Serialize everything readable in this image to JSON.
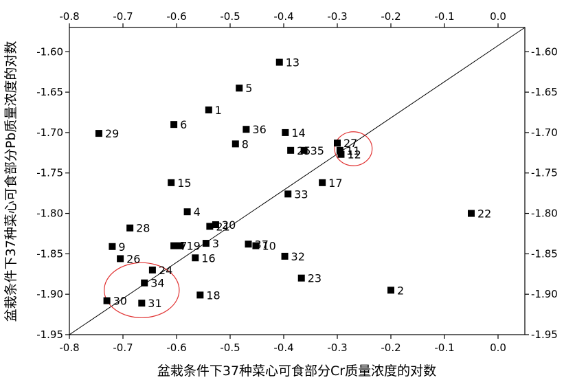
{
  "chart_data": {
    "type": "scatter",
    "xlabel": "盆栽条件下37种菜心可食部分Cr质量浓度的对数",
    "ylabel": "盆栽条件下37种菜心可食部分Pb质量浓度的对数",
    "xlim": [
      -0.8,
      0.05
    ],
    "ylim": [
      -1.95,
      -1.57
    ],
    "x_ticks": [
      -0.8,
      -0.7,
      -0.6,
      -0.5,
      -0.4,
      -0.3,
      -0.2,
      -0.1,
      0.0
    ],
    "x_tick_labels": [
      "-0.8",
      "-0.7",
      "-0.6",
      "-0.5",
      "-0.4",
      "-0.3",
      "-0.2",
      "-0.1",
      "0.0"
    ],
    "y_ticks": [
      -1.95,
      -1.9,
      -1.85,
      -1.8,
      -1.75,
      -1.7,
      -1.65,
      -1.6
    ],
    "y_tick_labels": [
      "-1.95",
      "-1.90",
      "-1.85",
      "-1.80",
      "-1.75",
      "-1.70",
      "-1.65",
      "-1.60"
    ],
    "mirror_axes": true,
    "grid": false,
    "reference_line": {
      "x": [
        -0.8,
        0.05
      ],
      "y": [
        -1.95,
        -1.57
      ]
    },
    "highlight_ellipses": [
      {
        "cx": -0.27,
        "cy": -1.72,
        "rx": 0.035,
        "ry": 0.021,
        "color": "#e03030"
      },
      {
        "cx": -0.665,
        "cy": -1.895,
        "rx": 0.07,
        "ry": 0.034,
        "color": "#e03030"
      }
    ],
    "points": [
      {
        "label": "1",
        "x": -0.54,
        "y": -1.672
      },
      {
        "label": "2",
        "x": -0.2,
        "y": -1.895
      },
      {
        "label": "3",
        "x": -0.545,
        "y": -1.837
      },
      {
        "label": "4",
        "x": -0.58,
        "y": -1.798
      },
      {
        "label": "5",
        "x": -0.483,
        "y": -1.645
      },
      {
        "label": "6",
        "x": -0.605,
        "y": -1.69
      },
      {
        "label": "7",
        "x": -0.605,
        "y": -1.84
      },
      {
        "label": "8",
        "x": -0.49,
        "y": -1.714
      },
      {
        "label": "9",
        "x": -0.72,
        "y": -1.841
      },
      {
        "label": "10",
        "x": -0.452,
        "y": -1.84
      },
      {
        "label": "11",
        "x": -0.295,
        "y": -1.722
      },
      {
        "label": "12",
        "x": -0.293,
        "y": -1.727
      },
      {
        "label": "13",
        "x": -0.408,
        "y": -1.613
      },
      {
        "label": "14",
        "x": -0.397,
        "y": -1.7
      },
      {
        "label": "15",
        "x": -0.61,
        "y": -1.762
      },
      {
        "label": "16",
        "x": -0.565,
        "y": -1.855
      },
      {
        "label": "17",
        "x": -0.328,
        "y": -1.762
      },
      {
        "label": "18",
        "x": -0.556,
        "y": -1.901
      },
      {
        "label": "19",
        "x": -0.593,
        "y": -1.84
      },
      {
        "label": "20",
        "x": -0.527,
        "y": -1.814
      },
      {
        "label": "21",
        "x": -0.538,
        "y": -1.816
      },
      {
        "label": "22",
        "x": -0.05,
        "y": -1.8
      },
      {
        "label": "23",
        "x": -0.367,
        "y": -1.88
      },
      {
        "label": "24",
        "x": -0.645,
        "y": -1.87
      },
      {
        "label": "25",
        "x": -0.387,
        "y": -1.722
      },
      {
        "label": "26",
        "x": -0.705,
        "y": -1.856
      },
      {
        "label": "27",
        "x": -0.3,
        "y": -1.713
      },
      {
        "label": "28",
        "x": -0.687,
        "y": -1.818
      },
      {
        "label": "29",
        "x": -0.745,
        "y": -1.701
      },
      {
        "label": "30",
        "x": -0.73,
        "y": -1.908
      },
      {
        "label": "31",
        "x": -0.665,
        "y": -1.911
      },
      {
        "label": "32",
        "x": -0.398,
        "y": -1.853
      },
      {
        "label": "33",
        "x": -0.392,
        "y": -1.776
      },
      {
        "label": "34",
        "x": -0.66,
        "y": -1.886
      },
      {
        "label": "35",
        "x": -0.362,
        "y": -1.722
      },
      {
        "label": "36",
        "x": -0.47,
        "y": -1.696
      },
      {
        "label": "37",
        "x": -0.466,
        "y": -1.838
      }
    ]
  }
}
